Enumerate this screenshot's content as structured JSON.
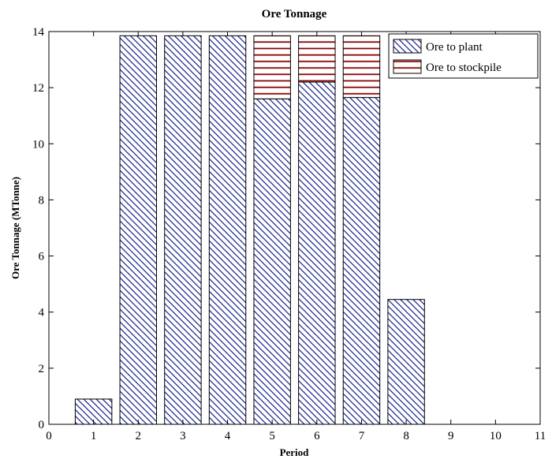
{
  "chart_data": {
    "type": "bar",
    "stacked": true,
    "title": "Ore Tonnage",
    "xlabel": "Period",
    "ylabel": "Ore Tonnage (MTonne)",
    "xlim": [
      0,
      11
    ],
    "ylim": [
      0,
      14
    ],
    "xticks": [
      0,
      1,
      2,
      3,
      4,
      5,
      6,
      7,
      8,
      9,
      10,
      11
    ],
    "yticks": [
      0,
      2,
      4,
      6,
      8,
      10,
      12,
      14
    ],
    "grid": false,
    "legend_position": "top-right",
    "categories": [
      1,
      2,
      3,
      4,
      5,
      6,
      7,
      8
    ],
    "series": [
      {
        "name": "Ore to plant",
        "values": [
          0.9,
          13.85,
          13.85,
          13.85,
          11.6,
          12.2,
          11.65,
          4.45
        ],
        "color": "#1f2b8f",
        "pattern": "diagonal-hatch"
      },
      {
        "name": "Ore to stockpile",
        "values": [
          0,
          0,
          0,
          0,
          2.25,
          1.65,
          2.2,
          0
        ],
        "color": "#8b0000",
        "pattern": "horizontal-lines"
      }
    ]
  }
}
